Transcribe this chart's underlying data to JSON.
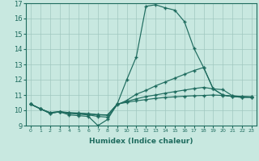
{
  "xlabel": "Humidex (Indice chaleur)",
  "xlim": [
    -0.5,
    23.5
  ],
  "ylim": [
    9,
    17
  ],
  "yticks": [
    9,
    10,
    11,
    12,
    13,
    14,
    15,
    16,
    17
  ],
  "xticks": [
    0,
    1,
    2,
    3,
    4,
    5,
    6,
    7,
    8,
    9,
    10,
    11,
    12,
    13,
    14,
    15,
    16,
    17,
    18,
    19,
    20,
    21,
    22,
    23
  ],
  "xtick_labels": [
    "0",
    "1",
    "2",
    "3",
    "4",
    "5",
    "6",
    "7",
    "8",
    "9",
    "10",
    "11",
    "12",
    "13",
    "14",
    "15",
    "16",
    "17",
    "18",
    "19",
    "20",
    "21",
    "22",
    "23"
  ],
  "line_color": "#1e6b5e",
  "bg_color": "#c8e8e0",
  "grid_color": "#a0c8c0",
  "line1_x": [
    0,
    1,
    2,
    3,
    4,
    5,
    6,
    7,
    8,
    9,
    10,
    11,
    12,
    13,
    14,
    15,
    16,
    17,
    18,
    19,
    20,
    21,
    22,
    23
  ],
  "line1_y": [
    10.4,
    10.1,
    9.8,
    9.9,
    9.7,
    9.65,
    9.6,
    9.0,
    9.4,
    10.4,
    12.0,
    13.5,
    16.8,
    16.9,
    16.7,
    16.55,
    15.8,
    14.05,
    12.8,
    11.4,
    11.0,
    10.9,
    10.85,
    10.85
  ],
  "line2_x": [
    0,
    1,
    2,
    3,
    4,
    5,
    6,
    7,
    8,
    9,
    10,
    11,
    12,
    13,
    14,
    15,
    16,
    17,
    18,
    19,
    20,
    21,
    22,
    23
  ],
  "line2_y": [
    10.4,
    10.1,
    9.8,
    9.9,
    9.8,
    9.75,
    9.7,
    9.6,
    9.55,
    10.35,
    10.65,
    11.05,
    11.3,
    11.6,
    11.85,
    12.1,
    12.35,
    12.6,
    12.8,
    11.4,
    11.0,
    10.9,
    10.85,
    10.85
  ],
  "line3_x": [
    0,
    1,
    2,
    3,
    4,
    5,
    6,
    7,
    8,
    9,
    10,
    11,
    12,
    13,
    14,
    15,
    16,
    17,
    18,
    19,
    20,
    21,
    22,
    23
  ],
  "line3_y": [
    10.4,
    10.1,
    9.85,
    9.9,
    9.82,
    9.8,
    9.75,
    9.7,
    9.68,
    10.4,
    10.58,
    10.75,
    10.9,
    11.0,
    11.12,
    11.22,
    11.32,
    11.42,
    11.5,
    11.4,
    11.35,
    10.95,
    10.9,
    10.87
  ],
  "line4_x": [
    0,
    1,
    2,
    3,
    4,
    5,
    6,
    7,
    8,
    9,
    10,
    11,
    12,
    13,
    14,
    15,
    16,
    17,
    18,
    19,
    20,
    21,
    22,
    23
  ],
  "line4_y": [
    10.4,
    10.1,
    9.85,
    9.92,
    9.85,
    9.82,
    9.78,
    9.72,
    9.7,
    10.4,
    10.52,
    10.62,
    10.7,
    10.78,
    10.84,
    10.88,
    10.92,
    10.95,
    10.97,
    11.0,
    10.97,
    10.93,
    10.9,
    10.88
  ],
  "marker": "+",
  "markersize": 3.5,
  "linewidth": 0.85
}
